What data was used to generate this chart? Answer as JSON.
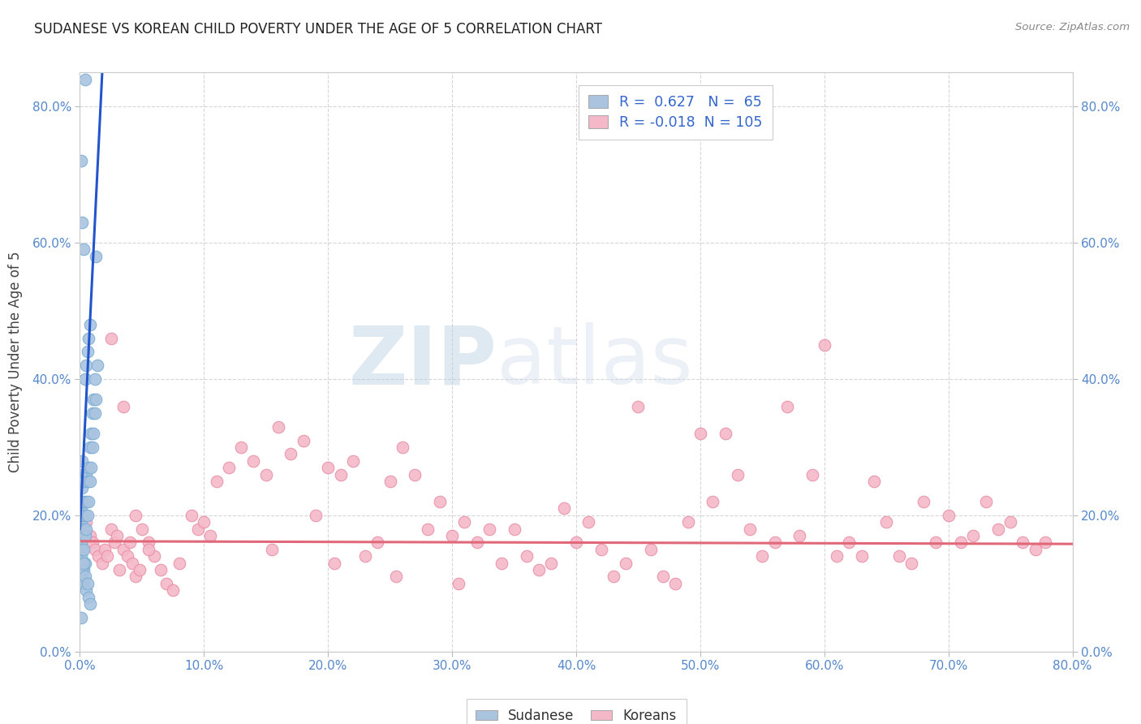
{
  "title": "SUDANESE VS KOREAN CHILD POVERTY UNDER THE AGE OF 5 CORRELATION CHART",
  "source": "Source: ZipAtlas.com",
  "ylabel": "Child Poverty Under the Age of 5",
  "xlim": [
    0.0,
    0.8
  ],
  "ylim": [
    0.0,
    0.85
  ],
  "x_ticks": [
    0.0,
    0.1,
    0.2,
    0.3,
    0.4,
    0.5,
    0.6,
    0.7,
    0.8
  ],
  "y_ticks": [
    0.0,
    0.2,
    0.4,
    0.6,
    0.8
  ],
  "sudanese_color": "#aac4e0",
  "sudanese_edge_color": "#7aadd4",
  "korean_color": "#f5b8c8",
  "korean_edge_color": "#e890a8",
  "sudanese_line_color": "#2255cc",
  "korean_line_color": "#e06878",
  "R_sudanese": 0.627,
  "N_sudanese": 65,
  "R_korean": -0.018,
  "N_korean": 105,
  "watermark_zip": "ZIP",
  "watermark_atlas": "atlas",
  "legend_label_sudanese": "Sudanese",
  "legend_label_korean": "Koreans",
  "sud_x": [
    0.001,
    0.001,
    0.001,
    0.001,
    0.001,
    0.001,
    0.001,
    0.001,
    0.001,
    0.002,
    0.002,
    0.002,
    0.002,
    0.002,
    0.002,
    0.002,
    0.002,
    0.003,
    0.003,
    0.003,
    0.003,
    0.003,
    0.004,
    0.004,
    0.004,
    0.004,
    0.005,
    0.005,
    0.005,
    0.005,
    0.006,
    0.006,
    0.006,
    0.007,
    0.007,
    0.007,
    0.008,
    0.008,
    0.008,
    0.009,
    0.009,
    0.01,
    0.01,
    0.011,
    0.011,
    0.012,
    0.012,
    0.013,
    0.013,
    0.014,
    0.001,
    0.002,
    0.002,
    0.003,
    0.003,
    0.004,
    0.005,
    0.006,
    0.007,
    0.008,
    0.001,
    0.001,
    0.002,
    0.003,
    0.004
  ],
  "sud_y": [
    0.14,
    0.15,
    0.16,
    0.17,
    0.18,
    0.19,
    0.2,
    0.21,
    0.22,
    0.13,
    0.15,
    0.17,
    0.2,
    0.22,
    0.24,
    0.26,
    0.28,
    0.12,
    0.15,
    0.18,
    0.22,
    0.25,
    0.13,
    0.17,
    0.2,
    0.4,
    0.18,
    0.22,
    0.26,
    0.42,
    0.2,
    0.25,
    0.44,
    0.22,
    0.27,
    0.46,
    0.25,
    0.3,
    0.48,
    0.27,
    0.32,
    0.3,
    0.35,
    0.32,
    0.37,
    0.35,
    0.4,
    0.37,
    0.58,
    0.42,
    0.1,
    0.11,
    0.12,
    0.1,
    0.13,
    0.11,
    0.09,
    0.1,
    0.08,
    0.07,
    0.72,
    0.05,
    0.63,
    0.59,
    0.84
  ],
  "kor_x": [
    0.005,
    0.008,
    0.01,
    0.012,
    0.015,
    0.018,
    0.02,
    0.022,
    0.025,
    0.028,
    0.03,
    0.032,
    0.035,
    0.038,
    0.04,
    0.042,
    0.045,
    0.048,
    0.05,
    0.055,
    0.06,
    0.065,
    0.07,
    0.075,
    0.08,
    0.09,
    0.095,
    0.1,
    0.11,
    0.12,
    0.13,
    0.14,
    0.15,
    0.16,
    0.17,
    0.18,
    0.19,
    0.2,
    0.21,
    0.22,
    0.23,
    0.24,
    0.25,
    0.26,
    0.27,
    0.28,
    0.29,
    0.3,
    0.31,
    0.32,
    0.33,
    0.34,
    0.35,
    0.36,
    0.37,
    0.38,
    0.39,
    0.4,
    0.41,
    0.42,
    0.43,
    0.44,
    0.45,
    0.46,
    0.47,
    0.48,
    0.49,
    0.5,
    0.51,
    0.52,
    0.53,
    0.54,
    0.55,
    0.56,
    0.57,
    0.58,
    0.59,
    0.6,
    0.61,
    0.62,
    0.63,
    0.64,
    0.65,
    0.66,
    0.67,
    0.68,
    0.69,
    0.7,
    0.71,
    0.72,
    0.73,
    0.74,
    0.75,
    0.76,
    0.77,
    0.778,
    0.025,
    0.035,
    0.045,
    0.055,
    0.105,
    0.155,
    0.205,
    0.255,
    0.305
  ],
  "kor_y": [
    0.19,
    0.17,
    0.16,
    0.15,
    0.14,
    0.13,
    0.15,
    0.14,
    0.18,
    0.16,
    0.17,
    0.12,
    0.15,
    0.14,
    0.16,
    0.13,
    0.11,
    0.12,
    0.18,
    0.16,
    0.14,
    0.12,
    0.1,
    0.09,
    0.13,
    0.2,
    0.18,
    0.19,
    0.25,
    0.27,
    0.3,
    0.28,
    0.26,
    0.33,
    0.29,
    0.31,
    0.2,
    0.27,
    0.26,
    0.28,
    0.14,
    0.16,
    0.25,
    0.3,
    0.26,
    0.18,
    0.22,
    0.17,
    0.19,
    0.16,
    0.18,
    0.13,
    0.18,
    0.14,
    0.12,
    0.13,
    0.21,
    0.16,
    0.19,
    0.15,
    0.11,
    0.13,
    0.36,
    0.15,
    0.11,
    0.1,
    0.19,
    0.32,
    0.22,
    0.32,
    0.26,
    0.18,
    0.14,
    0.16,
    0.36,
    0.17,
    0.26,
    0.45,
    0.14,
    0.16,
    0.14,
    0.25,
    0.19,
    0.14,
    0.13,
    0.22,
    0.16,
    0.2,
    0.16,
    0.17,
    0.22,
    0.18,
    0.19,
    0.16,
    0.15,
    0.16,
    0.46,
    0.36,
    0.2,
    0.15,
    0.17,
    0.15,
    0.13,
    0.11,
    0.1
  ]
}
